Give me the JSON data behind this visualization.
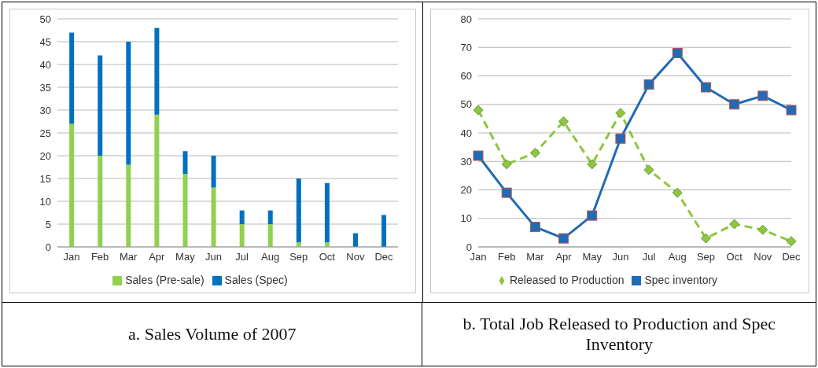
{
  "chart_data": [
    {
      "type": "bar",
      "title": "a. Sales Volume of 2007",
      "categories": [
        "Jan",
        "Feb",
        "Mar",
        "Apr",
        "May",
        "Jun",
        "Jul",
        "Aug",
        "Sep",
        "Oct",
        "Nov",
        "Dec"
      ],
      "stacked": true,
      "series": [
        {
          "name": "Sales (Pre-sale)",
          "color": "#92d050",
          "values": [
            27,
            20,
            18,
            29,
            16,
            13,
            5,
            5,
            1,
            1,
            0,
            0
          ]
        },
        {
          "name": "Sales (Spec)",
          "color": "#0070c0",
          "values": [
            20,
            22,
            27,
            19,
            5,
            7,
            3,
            3,
            14,
            13,
            3,
            7
          ]
        }
      ],
      "ylim": [
        0,
        50
      ],
      "yticks": [
        0,
        5,
        10,
        15,
        20,
        25,
        30,
        35,
        40,
        45,
        50
      ],
      "grid": "y",
      "legend": "bottom"
    },
    {
      "type": "line",
      "title": "b. Total Job Released to Production and Spec Inventory",
      "categories": [
        "Jan",
        "Feb",
        "Mar",
        "Apr",
        "May",
        "Jun",
        "Jul",
        "Aug",
        "Sep",
        "Oct",
        "Nov",
        "Dec"
      ],
      "series": [
        {
          "name": "Released to Production",
          "color": "#8dc63f",
          "marker": "diamond",
          "line_style": "dashed",
          "values": [
            48,
            29,
            33,
            44,
            29,
            47,
            27,
            19,
            3,
            8,
            6,
            2
          ]
        },
        {
          "name": "Spec inventory",
          "color": "#1f6bb5",
          "marker": "square",
          "line_style": "solid",
          "values": [
            32,
            19,
            7,
            3,
            11,
            38,
            57,
            68,
            56,
            50,
            53,
            48
          ]
        }
      ],
      "ylim": [
        0,
        80
      ],
      "yticks": [
        0,
        10,
        20,
        30,
        40,
        50,
        60,
        70,
        80
      ],
      "grid": "y",
      "legend": "bottom"
    }
  ]
}
